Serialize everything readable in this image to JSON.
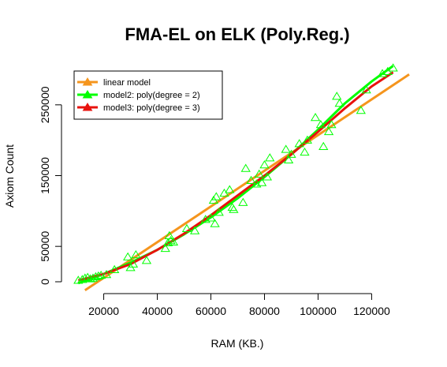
{
  "chart_data": {
    "type": "scatter",
    "title": "FMA-EL on ELK (Poly.Reg.)",
    "xlabel": "RAM (KB.)",
    "ylabel": "Axiom Count",
    "xlim": [
      6000,
      134000
    ],
    "ylim": [
      0,
      300000
    ],
    "x_ticks": [
      20000,
      40000,
      60000,
      80000,
      100000,
      120000
    ],
    "y_ticks": [
      0,
      50000,
      150000,
      250000
    ],
    "grid": false,
    "legend_position": "top-left",
    "points": {
      "marker": "open-triangle",
      "color": "#00ff00",
      "data": [
        [
          10500,
          2000
        ],
        [
          12000,
          3000
        ],
        [
          13000,
          5000
        ],
        [
          14000,
          6000
        ],
        [
          15000,
          4000
        ],
        [
          16000,
          5000
        ],
        [
          17000,
          7000
        ],
        [
          18000,
          8000
        ],
        [
          19000,
          9000
        ],
        [
          21000,
          10000
        ],
        [
          24000,
          17000
        ],
        [
          29000,
          35000
        ],
        [
          30000,
          20000
        ],
        [
          31000,
          25000
        ],
        [
          32000,
          38000
        ],
        [
          36000,
          30000
        ],
        [
          43000,
          47000
        ],
        [
          44000,
          55000
        ],
        [
          44500,
          65000
        ],
        [
          45000,
          58000
        ],
        [
          46000,
          56000
        ],
        [
          51000,
          75000
        ],
        [
          54000,
          72000
        ],
        [
          58000,
          88000
        ],
        [
          60000,
          90000
        ],
        [
          61000,
          115000
        ],
        [
          61500,
          82000
        ],
        [
          62000,
          120000
        ],
        [
          63000,
          98000
        ],
        [
          65000,
          125000
        ],
        [
          67000,
          130000
        ],
        [
          68000,
          105000
        ],
        [
          68500,
          102000
        ],
        [
          72000,
          112000
        ],
        [
          73000,
          160000
        ],
        [
          75000,
          143000
        ],
        [
          77000,
          138000
        ],
        [
          78000,
          152000
        ],
        [
          79000,
          140000
        ],
        [
          80000,
          165000
        ],
        [
          81000,
          148000
        ],
        [
          82000,
          175000
        ],
        [
          88000,
          187000
        ],
        [
          89000,
          172000
        ],
        [
          90000,
          180000
        ],
        [
          93000,
          195000
        ],
        [
          95000,
          183000
        ],
        [
          96000,
          200000
        ],
        [
          99000,
          232000
        ],
        [
          101000,
          222000
        ],
        [
          102000,
          191000
        ],
        [
          104000,
          212000
        ],
        [
          105000,
          222000
        ],
        [
          107000,
          262000
        ],
        [
          108000,
          252000
        ],
        [
          116000,
          242000
        ],
        [
          118000,
          271000
        ],
        [
          124000,
          294000
        ],
        [
          126000,
          297000
        ],
        [
          128000,
          302000
        ]
      ]
    },
    "series": [
      {
        "name": "linear model",
        "color": "#f5951d",
        "x": [
          13000,
          134000
        ],
        "y": [
          -12000,
          293000
        ]
      },
      {
        "name": "model2: poly(degree = 2)",
        "color": "#00ff00",
        "x": [
          10500,
          20000,
          30000,
          40000,
          50000,
          60000,
          70000,
          80000,
          90000,
          100000,
          110000,
          120000,
          128000
        ],
        "y": [
          -2000,
          11000,
          27000,
          45000,
          67000,
          91000,
          118000,
          148000,
          180000,
          215000,
          252000,
          283000,
          305000
        ]
      },
      {
        "name": "model3: poly(degree = 3)",
        "color": "#e8120d",
        "x": [
          10500,
          20000,
          30000,
          40000,
          50000,
          60000,
          70000,
          80000,
          90000,
          100000,
          110000,
          120000,
          128000
        ],
        "y": [
          2000,
          11000,
          25000,
          45000,
          68000,
          94000,
          122000,
          150000,
          180000,
          212000,
          245000,
          276000,
          296000
        ]
      }
    ]
  }
}
